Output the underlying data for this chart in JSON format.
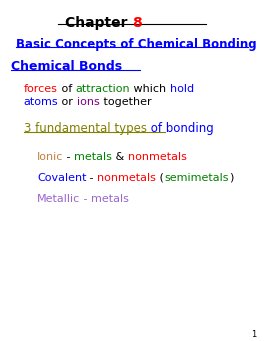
{
  "bg_color": "#ffffff",
  "line1_parts": [
    {
      "text": "forces",
      "color": "#ff0000"
    },
    {
      "text": " of ",
      "color": "#000000"
    },
    {
      "text": "attraction",
      "color": "#008000"
    },
    {
      "text": " which ",
      "color": "#000000"
    },
    {
      "text": "hold",
      "color": "#0000ff"
    }
  ],
  "line2_parts": [
    {
      "text": "atoms",
      "color": "#0000ff"
    },
    {
      "text": " or ",
      "color": "#000000"
    },
    {
      "text": "ions",
      "color": "#800080"
    },
    {
      "text": " together",
      "color": "#000000"
    }
  ],
  "fund_parts": [
    {
      "text": "3 fundamental types",
      "color": "#808000"
    },
    {
      "text": " of bonding",
      "color": "#0000ff"
    }
  ],
  "ionic_parts": [
    {
      "text": "Ionic",
      "color": "#c08040"
    },
    {
      "text": " - ",
      "color": "#000000"
    },
    {
      "text": "metals",
      "color": "#008000"
    },
    {
      "text": " & ",
      "color": "#000000"
    },
    {
      "text": "nonmetals",
      "color": "#ff0000"
    }
  ],
  "covalent_parts": [
    {
      "text": "Covalent",
      "color": "#0000ff"
    },
    {
      "text": " - ",
      "color": "#000000"
    },
    {
      "text": "nonmetals",
      "color": "#ff0000"
    },
    {
      "text": " (",
      "color": "#000000"
    },
    {
      "text": "semimetals",
      "color": "#008000"
    },
    {
      "text": ")",
      "color": "#000000"
    }
  ],
  "metallic_parts": [
    {
      "text": "Metallic",
      "color": "#9966cc"
    },
    {
      "text": " - ",
      "color": "#9966cc"
    },
    {
      "text": "metals",
      "color": "#9966cc"
    }
  ]
}
